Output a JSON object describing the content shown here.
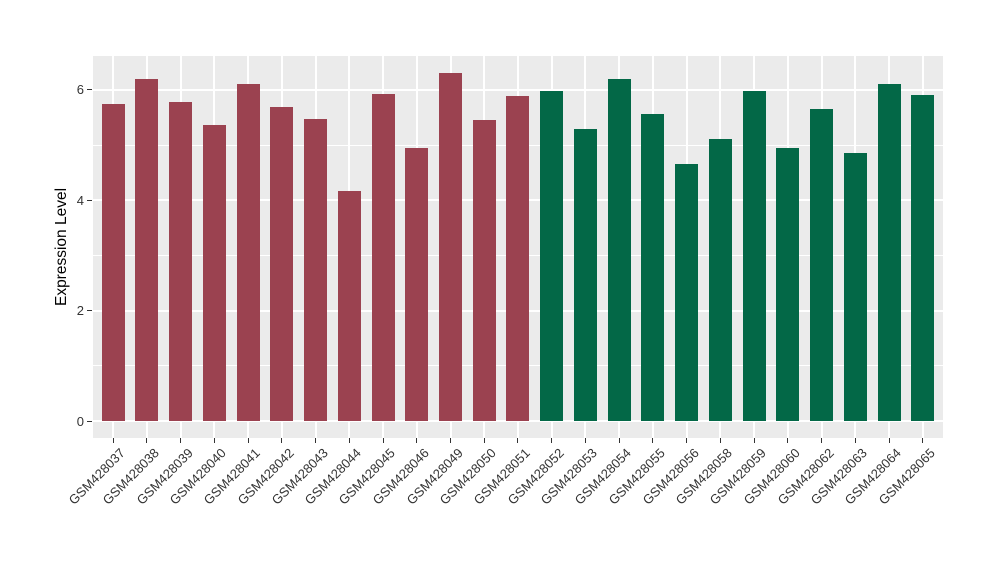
{
  "chart_data": {
    "type": "bar",
    "title": "",
    "xlabel": "",
    "ylabel": "Expression Level",
    "ylim": [
      0,
      6.6
    ],
    "ytick_labels": [
      "0",
      "2",
      "4",
      "6"
    ],
    "ytick_values": [
      0,
      2,
      4,
      6
    ],
    "yminor_values": [
      1,
      3,
      5
    ],
    "grid": "white major and minor horizontal lines plus vertical category lines on gray panel",
    "legend_position": "none",
    "categories": [
      "GSM428037",
      "GSM428038",
      "GSM428039",
      "GSM428040",
      "GSM428041",
      "GSM428042",
      "GSM428043",
      "GSM428044",
      "GSM428045",
      "GSM428046",
      "GSM428049",
      "GSM428050",
      "GSM428051",
      "GSM428052",
      "GSM428053",
      "GSM428054",
      "GSM428055",
      "GSM428056",
      "GSM428058",
      "GSM428059",
      "GSM428060",
      "GSM428062",
      "GSM428063",
      "GSM428064",
      "GSM428065"
    ],
    "values": [
      5.74,
      6.2,
      5.77,
      5.37,
      6.1,
      5.69,
      5.47,
      4.16,
      5.92,
      4.95,
      6.3,
      5.46,
      5.89,
      5.97,
      5.29,
      6.2,
      5.57,
      4.66,
      5.1,
      5.98,
      4.95,
      5.66,
      4.85,
      6.1,
      5.9
    ],
    "groups": [
      "group1",
      "group1",
      "group1",
      "group1",
      "group1",
      "group1",
      "group1",
      "group1",
      "group1",
      "group1",
      "group1",
      "group1",
      "group1",
      "group2",
      "group2",
      "group2",
      "group2",
      "group2",
      "group2",
      "group2",
      "group2",
      "group2",
      "group2",
      "group2",
      "group2"
    ],
    "group_colors": {
      "group1": "#9B4250",
      "group2": "#036847"
    },
    "colors": {
      "panel_bg": "#EBEBEB",
      "grid": "#FFFFFF",
      "axis_text": "#333333",
      "axis_title": "#000000",
      "tick_mark": "#333333",
      "figure_bg": "#FFFFFF"
    }
  }
}
